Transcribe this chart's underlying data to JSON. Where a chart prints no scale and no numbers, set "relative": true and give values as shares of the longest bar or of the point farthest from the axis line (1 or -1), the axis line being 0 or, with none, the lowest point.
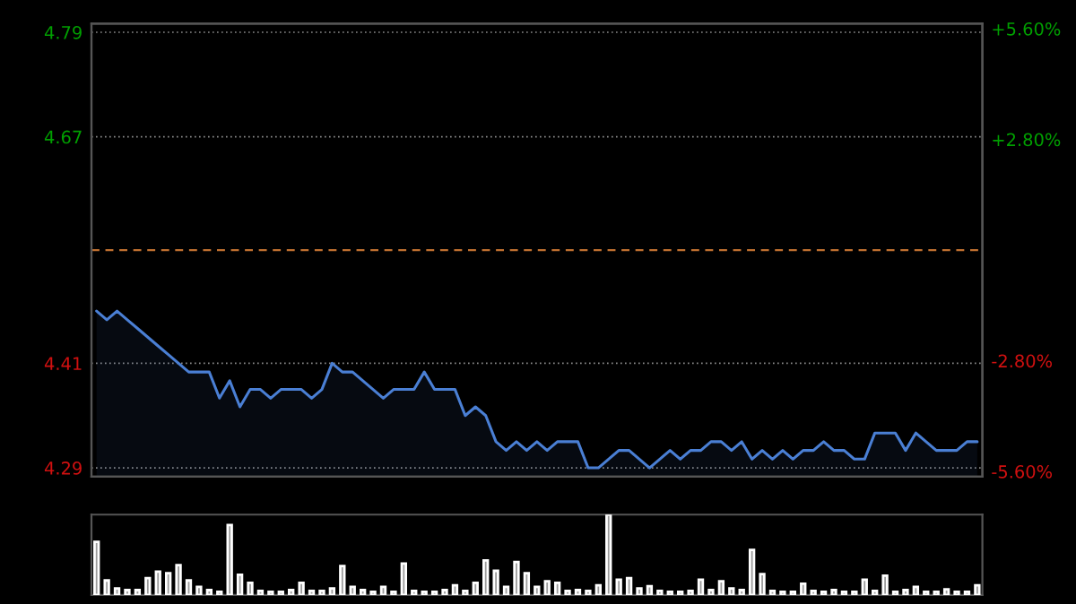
{
  "chart_data": [
    {
      "type": "area",
      "categories": [
        null,
        null,
        null,
        null,
        null,
        null,
        null,
        null,
        null,
        null,
        null,
        null,
        null,
        null,
        null,
        null,
        null,
        null,
        null,
        null,
        null,
        null,
        null,
        null,
        null,
        null,
        null,
        null,
        null,
        null,
        null,
        null,
        null,
        null,
        null,
        null,
        null,
        null,
        null,
        null,
        null,
        null,
        null,
        null,
        null,
        null,
        null,
        null,
        null,
        null,
        null,
        null,
        null,
        null,
        null,
        null,
        null,
        null,
        null,
        null,
        null,
        null,
        null,
        null,
        null,
        null,
        null,
        null,
        null,
        null,
        null,
        null,
        null,
        null,
        null,
        null,
        null,
        null,
        null,
        null,
        null,
        null,
        null,
        null,
        null,
        null,
        null
      ],
      "series": [
        {
          "color": "#4a7fd4",
          "values": [
            4.47,
            4.46,
            4.47,
            4.46,
            4.45,
            4.44,
            4.43,
            4.42,
            4.41,
            4.4,
            4.4,
            4.4,
            4.37,
            4.39,
            4.36,
            4.38,
            4.38,
            4.37,
            4.38,
            4.38,
            4.38,
            4.37,
            4.38,
            4.41,
            4.4,
            4.4,
            4.39,
            4.38,
            4.37,
            4.38,
            4.38,
            4.38,
            4.4,
            4.38,
            4.38,
            4.38,
            4.35,
            4.36,
            4.35,
            4.32,
            4.31,
            4.32,
            4.31,
            4.32,
            4.31,
            4.32,
            4.32,
            4.32,
            4.29,
            4.29,
            4.3,
            4.31,
            4.31,
            4.3,
            4.29,
            4.3,
            4.31,
            4.3,
            4.31,
            4.31,
            4.32,
            4.32,
            4.31,
            4.32,
            4.3,
            4.31,
            4.3,
            4.31,
            4.3,
            4.31,
            4.31,
            4.32,
            4.31,
            4.31,
            4.3,
            4.3,
            4.33,
            4.33,
            4.33,
            4.31,
            4.33,
            4.32,
            4.31,
            4.31,
            4.31,
            4.32,
            4.32
          ]
        }
      ],
      "ylim": [
        4.28,
        4.8
      ],
      "yticks": [
        4.29,
        4.41,
        4.67,
        4.79
      ],
      "y2lim": [
        -5.73,
        5.73
      ],
      "y2ticks": [
        {
          "value": -5.6,
          "label": "-5.60%"
        },
        {
          "value": -2.8,
          "label": "-2.80%"
        },
        {
          "value": 2.8,
          "label": "+2.80%"
        },
        {
          "value": 5.6,
          "label": "+5.60%"
        }
      ],
      "ref_lines": [
        {
          "axis": "y",
          "value": 4.54,
          "color": "#c07030",
          "line_style": "dashed"
        }
      ],
      "grid": "y",
      "legend": false,
      "tick_labels": "y"
    },
    {
      "type": "bar",
      "relative": true,
      "tick_labels": false,
      "categories": [
        null,
        null,
        null,
        null,
        null,
        null,
        null,
        null,
        null,
        null,
        null,
        null,
        null,
        null,
        null,
        null,
        null,
        null,
        null,
        null,
        null,
        null,
        null,
        null,
        null,
        null,
        null,
        null,
        null,
        null,
        null,
        null,
        null,
        null,
        null,
        null,
        null,
        null,
        null,
        null,
        null,
        null,
        null,
        null,
        null,
        null,
        null,
        null,
        null,
        null,
        null,
        null,
        null,
        null,
        null,
        null,
        null,
        null,
        null,
        null,
        null,
        null,
        null,
        null,
        null,
        null,
        null,
        null,
        null,
        null,
        null,
        null,
        null,
        null,
        null,
        null,
        null,
        null,
        null,
        null,
        null,
        null,
        null,
        null,
        null,
        null,
        null
      ],
      "series": [
        {
          "color": "#9a9a9a",
          "values": [
            0.66,
            0.18,
            0.08,
            0.06,
            0.06,
            0.21,
            0.29,
            0.27,
            0.37,
            0.18,
            0.1,
            0.06,
            0.04,
            0.87,
            0.25,
            0.15,
            0.05,
            0.04,
            0.04,
            0.06,
            0.15,
            0.05,
            0.05,
            0.08,
            0.36,
            0.1,
            0.06,
            0.04,
            0.1,
            0.04,
            0.39,
            0.05,
            0.04,
            0.04,
            0.06,
            0.12,
            0.05,
            0.15,
            0.43,
            0.3,
            0.1,
            0.41,
            0.27,
            0.1,
            0.17,
            0.15,
            0.05,
            0.06,
            0.05,
            0.12,
            1.0,
            0.19,
            0.21,
            0.08,
            0.11,
            0.05,
            0.04,
            0.04,
            0.05,
            0.19,
            0.06,
            0.17,
            0.08,
            0.06,
            0.56,
            0.26,
            0.05,
            0.04,
            0.04,
            0.14,
            0.05,
            0.04,
            0.06,
            0.04,
            0.04,
            0.19,
            0.05,
            0.24,
            0.04,
            0.06,
            0.1,
            0.04,
            0.04,
            0.07,
            0.04,
            0.04,
            0.12
          ]
        }
      ]
    }
  ]
}
